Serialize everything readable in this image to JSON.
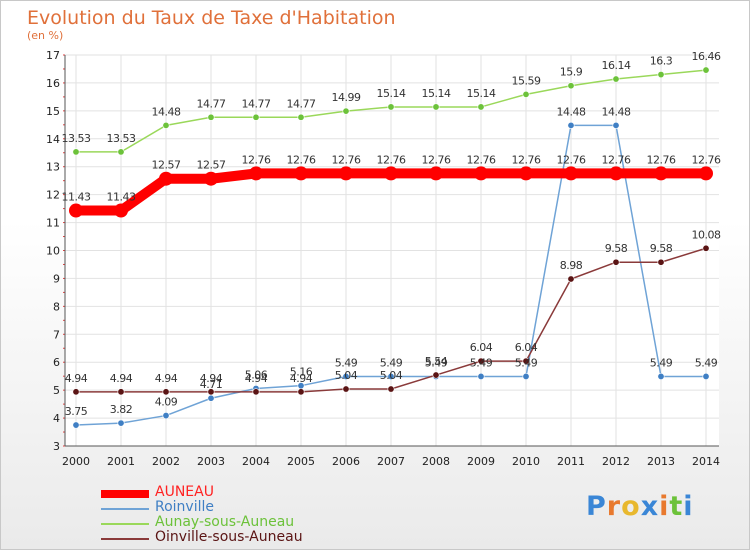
{
  "title": "Evolution du Taux de Taxe d'Habitation",
  "unit_label": "(en %)",
  "logo": "Proxiti",
  "chart_data": {
    "type": "line",
    "title": "Evolution du Taux de Taxe d'Habitation",
    "ylabel": "(en %)",
    "x": [
      "2000",
      "2001",
      "2002",
      "2003",
      "2004",
      "2005",
      "2006",
      "2007",
      "2008",
      "2009",
      "2010",
      "2011",
      "2012",
      "2013",
      "2014"
    ],
    "ylim": [
      3,
      17
    ],
    "yticks": [
      3,
      4,
      5,
      6,
      7,
      8,
      9,
      10,
      11,
      12,
      13,
      14,
      15,
      16,
      17
    ],
    "grid": true,
    "legend_position": "bottom-left",
    "series": [
      {
        "name": "AUNEAU",
        "color": "#ff0000",
        "emphasis": "thick",
        "values": [
          11.43,
          11.43,
          12.57,
          12.57,
          12.76,
          12.76,
          12.76,
          12.76,
          12.76,
          12.76,
          12.76,
          12.76,
          12.76,
          12.76,
          12.76
        ],
        "labels": [
          "11.43",
          "11.43",
          "12.57",
          "12.57",
          "12.76",
          "12.76",
          "12.76",
          "12.76",
          "12.76",
          "12.76",
          "12.76",
          "12.76",
          "12.76",
          "12.76",
          "12.76"
        ]
      },
      {
        "name": "Roinville",
        "color": "#6fa3d6",
        "marker_color": "#3f7fc4",
        "values": [
          3.75,
          3.82,
          4.09,
          4.71,
          5.06,
          5.16,
          5.49,
          5.49,
          5.49,
          5.49,
          5.49,
          14.48,
          14.48,
          5.49,
          5.49
        ],
        "labels": [
          "3.75",
          "3.82",
          "4.09",
          "4.71",
          "5.06",
          "5.16",
          "5.49",
          "5.49",
          "5.49",
          "5.49",
          "5.49",
          "14.48",
          "14.48",
          "5.49",
          "5.49"
        ]
      },
      {
        "name": "Aunay-sous-Auneau",
        "color": "#9ad85a",
        "marker_color": "#6cc23a",
        "values": [
          13.53,
          13.53,
          14.48,
          14.77,
          14.77,
          14.77,
          14.99,
          15.14,
          15.14,
          15.14,
          15.59,
          15.9,
          16.14,
          16.3,
          16.46
        ],
        "labels": [
          "13.53",
          "13.53",
          "14.48",
          "14.77",
          "14.77",
          "14.77",
          "14.99",
          "15.14",
          "15.14",
          "15.14",
          "15.59",
          "15.9",
          "16.14",
          "16.3",
          "16.46"
        ]
      },
      {
        "name": "Oinville-sous-Auneau",
        "color": "#8a3a3a",
        "marker_color": "#5a1414",
        "values": [
          4.94,
          4.94,
          4.94,
          4.94,
          4.94,
          4.94,
          5.04,
          5.04,
          5.54,
          6.04,
          6.04,
          8.98,
          9.58,
          9.58,
          10.08
        ],
        "labels": [
          "4.94",
          "4.94",
          "4.94",
          "4.94",
          "4.94",
          "4.94",
          "5.04",
          "5.04",
          "5.54",
          "6.04",
          "6.04",
          "8.98",
          "9.58",
          "9.58",
          "10.08"
        ]
      }
    ]
  }
}
